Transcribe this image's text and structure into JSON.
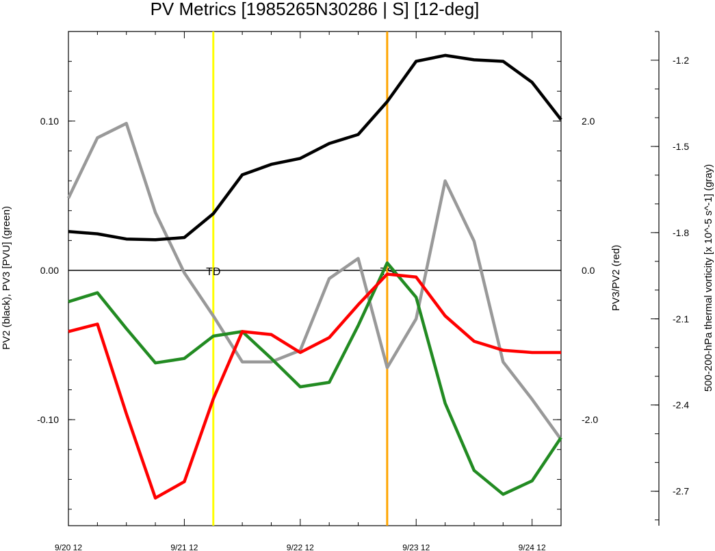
{
  "chart_data": {
    "type": "line",
    "title": "PV Metrics [1985265N30286 | S] [12-deg]",
    "x": [
      0,
      0.5,
      1,
      1.5,
      2,
      2.5,
      3,
      3.5,
      4,
      4.5,
      5,
      5.5,
      6,
      6.5,
      7,
      7.5,
      8,
      8.5
    ],
    "xlim": [
      0,
      8.5
    ],
    "x_ticks": [
      {
        "x": 0,
        "label": "9/20 12"
      },
      {
        "x": 2,
        "label": "9/21 12"
      },
      {
        "x": 4,
        "label": "9/22 12"
      },
      {
        "x": 6,
        "label": "9/23 12"
      },
      {
        "x": 8,
        "label": "9/24 12"
      }
    ],
    "axes": {
      "left": {
        "label": "PV2 (black), PV3 [PVU] (green)",
        "ylim": [
          -0.171,
          0.16
        ],
        "ticks": [
          {
            "v": 0.1,
            "label": "0.10"
          },
          {
            "v": 0.0,
            "label": "0.00"
          },
          {
            "v": -0.1,
            "label": "-0.10"
          }
        ],
        "minor_step": 0.02
      },
      "right": {
        "label": "PV3/PV2 (red)",
        "ylim": [
          -3.42,
          3.2
        ],
        "ticks": [
          {
            "v": 2.0,
            "label": "2.0"
          },
          {
            "v": 0.0,
            "label": "0.0"
          },
          {
            "v": -2.0,
            "label": "-2.0"
          }
        ],
        "minor_step": 0.4
      },
      "far_right": {
        "label": "500-200-hPa thermal vorticity [x 10^-5 s^-1] (gray)",
        "ylim": [
          -2.82,
          -1.1
        ],
        "ticks": [
          {
            "v": -1.2,
            "label": "-1.2"
          },
          {
            "v": -1.5,
            "label": "-1.5"
          },
          {
            "v": -1.8,
            "label": "-1.8"
          },
          {
            "v": -2.1,
            "label": "-2.1"
          },
          {
            "v": -2.4,
            "label": "-2.4"
          },
          {
            "v": -2.7,
            "label": "-2.7"
          }
        ],
        "minor_step": 0.1
      }
    },
    "series": [
      {
        "name": "PV2 (black)",
        "axis": "left",
        "color": "#000000",
        "values": [
          0.026,
          0.0245,
          0.021,
          0.0205,
          0.022,
          0.038,
          0.064,
          0.071,
          0.075,
          0.085,
          0.091,
          0.113,
          0.14,
          0.144,
          0.141,
          0.14,
          0.126,
          0.101
        ]
      },
      {
        "name": "PV3 (green)",
        "axis": "left",
        "color": "#228B22",
        "values": [
          -0.021,
          -0.015,
          -0.039,
          -0.062,
          -0.059,
          -0.044,
          -0.041,
          -0.059,
          -0.078,
          -0.075,
          -0.037,
          0.005,
          -0.018,
          -0.089,
          -0.134,
          -0.15,
          -0.141,
          -0.112
        ]
      },
      {
        "name": "PV3/PV2 (red)",
        "axis": "right",
        "color": "#ff0000",
        "values": [
          -0.82,
          -0.72,
          -1.92,
          -3.05,
          -2.83,
          -1.72,
          -0.82,
          -0.86,
          -1.1,
          -0.9,
          -0.46,
          -0.05,
          -0.09,
          -0.61,
          -0.95,
          -1.07,
          -1.1,
          -1.1
        ]
      },
      {
        "name": "thermal vorticity (gray)",
        "axis": "far_right",
        "color": "#999999",
        "values": [
          -1.68,
          -1.47,
          -1.42,
          -1.73,
          -1.94,
          -2.09,
          -2.25,
          -2.25,
          -2.21,
          -1.96,
          -1.89,
          -2.27,
          -2.1,
          -1.62,
          -1.83,
          -2.25,
          -2.38,
          -2.52
        ]
      }
    ],
    "zero_line": {
      "axis": "left",
      "value": 0
    },
    "markers": [
      {
        "label": "TD",
        "x": 2.5,
        "color": "#ffff00"
      },
      {
        "label": "TS",
        "x": 5.5,
        "color": "#ffa500"
      }
    ],
    "grid": false,
    "legend": "none"
  }
}
